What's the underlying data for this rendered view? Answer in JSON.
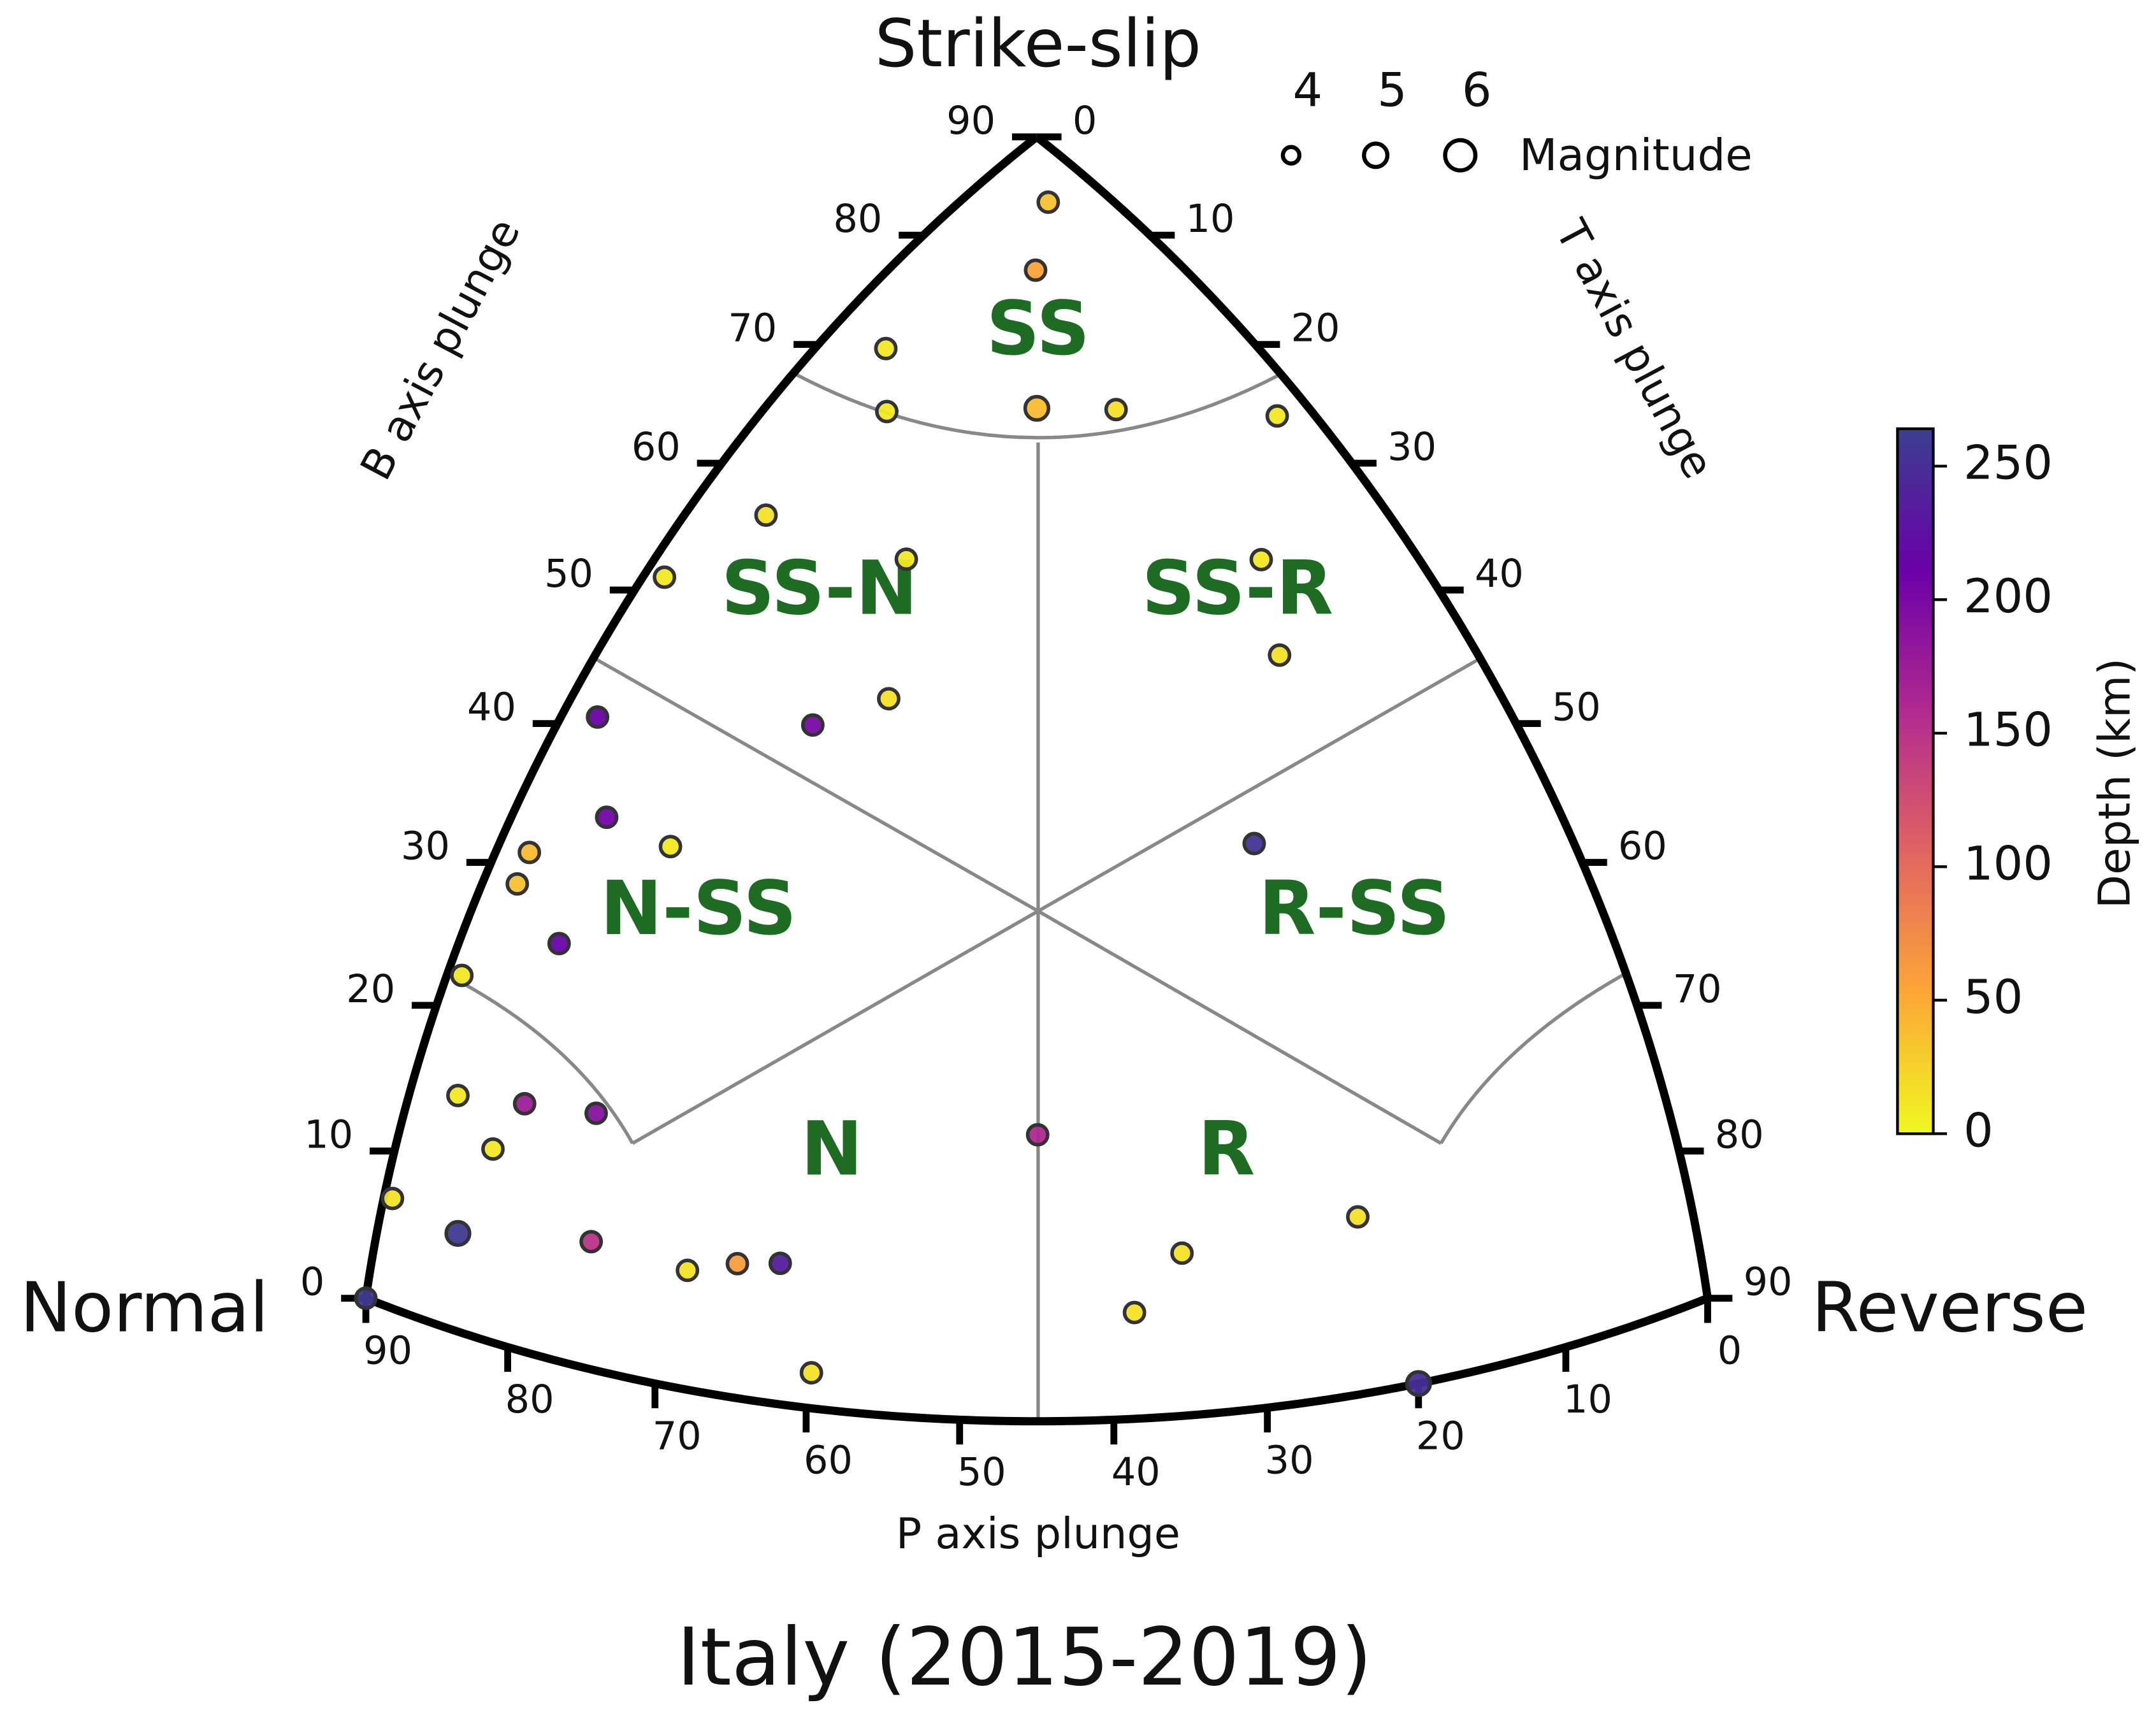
{
  "chart_data": {
    "type": "ternary",
    "title": "Italy (2015-2019)",
    "vertex_labels": {
      "top": "Strike-slip",
      "left": "Normal",
      "right": "Reverse"
    },
    "b_axis": {
      "label": "B axis plunge",
      "lim": [
        0,
        90
      ],
      "ticks": [
        0,
        10,
        20,
        30,
        40,
        50,
        60,
        70,
        80,
        90
      ]
    },
    "t_axis": {
      "label": "T axis plunge",
      "lim": [
        0,
        90
      ],
      "ticks": [
        0,
        10,
        20,
        30,
        40,
        50,
        60,
        70,
        80,
        90
      ]
    },
    "p_axis": {
      "label": "P axis plunge",
      "lim": [
        0,
        90
      ],
      "ticks": [
        0,
        10,
        20,
        30,
        40,
        50,
        60,
        70,
        80,
        90
      ]
    },
    "regions": [
      "SS",
      "SS-N",
      "SS-R",
      "N-SS",
      "R-SS",
      "N",
      "R"
    ],
    "points": {
      "b_plunge": [
        85,
        80,
        72,
        68,
        70,
        69.4,
        65.2,
        58.4,
        58.5,
        51.7,
        56.8,
        50.3,
        48.9,
        46.1,
        41.6,
        35.9,
        35.6,
        31.7,
        29.5,
        27,
        38.4,
        22.5,
        15.1,
        16.2,
        17.1,
        12.6,
        20,
        7,
        6.4,
        8.6,
        8.2,
        9.3,
        9.8,
        2.5,
        11.4,
        7.5,
        12.2,
        0,
        0
      ],
      "t_plunge": [
        4,
        7,
        3.7,
        6.7,
        14,
        17.7,
        24.7,
        4.7,
        14.3,
        1.3,
        31.6,
        37.2,
        19,
        15.6,
        2.3,
        6.1,
        11,
        2.2,
        2.3,
        6.6,
        44.8,
        1,
        3.3,
        7.9,
        12.8,
        6.6,
        41.7,
        0.6,
        5.5,
        14.5,
        21.2,
        24.4,
        27.2,
        30.2,
        53.3,
        50.9,
        64.2,
        70,
        0
      ],
      "depth": [
        35,
        55,
        10,
        10,
        40,
        15,
        10,
        15,
        10,
        10,
        10,
        15,
        15,
        200,
        210,
        205,
        10,
        40,
        35,
        215,
        255,
        10,
        10,
        175,
        190,
        10,
        160,
        15,
        260,
        150,
        15,
        60,
        235,
        15,
        15,
        15,
        15,
        250,
        260
      ],
      "magnitude": [
        4.5,
        4.5,
        4.5,
        4.5,
        5,
        4.5,
        4.5,
        4.5,
        4.5,
        4.5,
        4.5,
        4.5,
        4.5,
        4.5,
        4.5,
        4.5,
        4.5,
        4.5,
        4.5,
        4.5,
        4.5,
        4.5,
        4.5,
        4.5,
        4.5,
        4.5,
        4.5,
        4.5,
        5,
        4.5,
        4.5,
        4.5,
        4.5,
        4.5,
        4.5,
        4.5,
        4.5,
        5,
        4.5
      ]
    },
    "size_legend": {
      "title": "Magnitude",
      "values": [
        4,
        5,
        6
      ]
    },
    "colorbar": {
      "label": "Depth (km)",
      "lim": [
        0,
        264
      ],
      "ticks": [
        0,
        50,
        100,
        150,
        200,
        250
      ],
      "colors": [
        "#f0f921",
        "#fca636",
        "#e16462",
        "#b12a90",
        "#6a00a8",
        "#3b3f8f"
      ]
    }
  }
}
